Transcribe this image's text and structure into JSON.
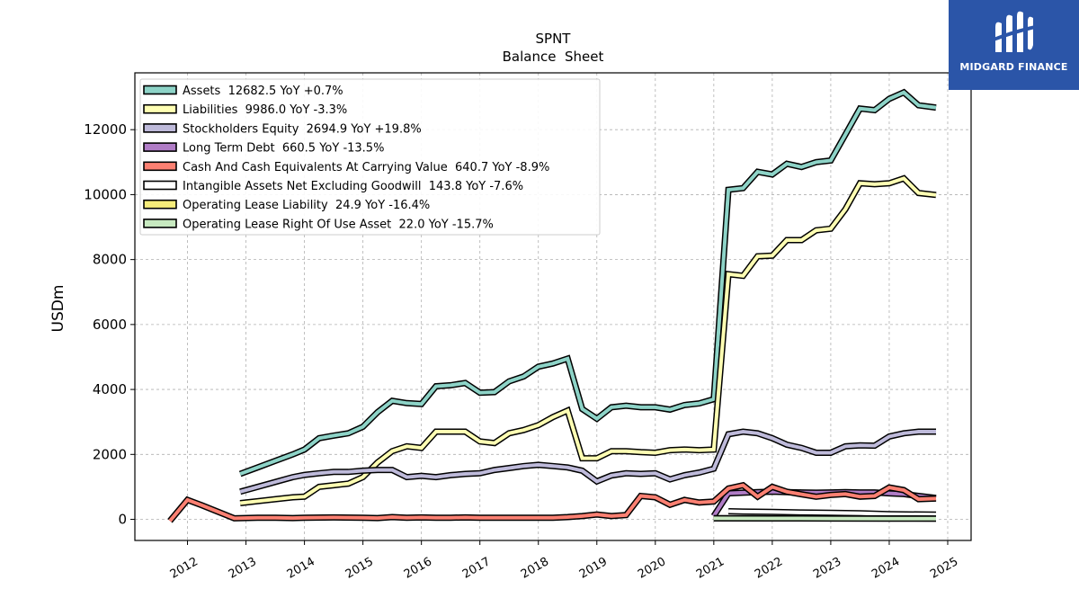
{
  "brand": {
    "name": "MIDGARD FINANCE",
    "bg_color": "#2b55a8"
  },
  "chart_data": {
    "type": "line",
    "title": "SPNT",
    "subtitle": "Balance  Sheet",
    "xlabel": "",
    "ylabel": "USDm",
    "xlim": [
      2011.1,
      2025.4
    ],
    "ylim": [
      -650,
      13750
    ],
    "x_ticks": [
      "2012",
      "2013",
      "2014",
      "2015",
      "2016",
      "2017",
      "2018",
      "2019",
      "2020",
      "2021",
      "2022",
      "2023",
      "2024",
      "2025"
    ],
    "y_ticks": [
      "0",
      "2000",
      "4000",
      "6000",
      "8000",
      "10000",
      "12000"
    ],
    "grid": true,
    "legend_position": "upper-left",
    "series": [
      {
        "name": "Assets",
        "legend_label": "Assets  12682.5 YoY +0.7%",
        "color": "#8dd3c7",
        "points": [
          [
            2012.9,
            1400
          ],
          [
            2013.2,
            1600
          ],
          [
            2013.5,
            1800
          ],
          [
            2013.8,
            2000
          ],
          [
            2014.0,
            2150
          ],
          [
            2014.25,
            2500
          ],
          [
            2014.5,
            2580
          ],
          [
            2014.75,
            2650
          ],
          [
            2015.0,
            2850
          ],
          [
            2015.25,
            3300
          ],
          [
            2015.5,
            3650
          ],
          [
            2015.75,
            3580
          ],
          [
            2016.0,
            3550
          ],
          [
            2016.25,
            4100
          ],
          [
            2016.5,
            4130
          ],
          [
            2016.75,
            4200
          ],
          [
            2017.0,
            3900
          ],
          [
            2017.25,
            3920
          ],
          [
            2017.5,
            4250
          ],
          [
            2017.75,
            4400
          ],
          [
            2018.0,
            4700
          ],
          [
            2018.25,
            4800
          ],
          [
            2018.5,
            4950
          ],
          [
            2018.75,
            3400
          ],
          [
            2019.0,
            3100
          ],
          [
            2019.25,
            3450
          ],
          [
            2019.5,
            3500
          ],
          [
            2019.75,
            3450
          ],
          [
            2020.0,
            3450
          ],
          [
            2020.25,
            3380
          ],
          [
            2020.5,
            3520
          ],
          [
            2020.75,
            3570
          ],
          [
            2021.0,
            3700
          ],
          [
            2021.25,
            10150
          ],
          [
            2021.5,
            10200
          ],
          [
            2021.75,
            10700
          ],
          [
            2022.0,
            10620
          ],
          [
            2022.25,
            10950
          ],
          [
            2022.5,
            10850
          ],
          [
            2022.75,
            11000
          ],
          [
            2023.0,
            11050
          ],
          [
            2023.25,
            11850
          ],
          [
            2023.5,
            12650
          ],
          [
            2023.75,
            12600
          ],
          [
            2024.0,
            12950
          ],
          [
            2024.25,
            13150
          ],
          [
            2024.5,
            12750
          ],
          [
            2024.8,
            12680
          ]
        ]
      },
      {
        "name": "Liabilities",
        "legend_label": "Liabilities  9986.0 YoY -3.3%",
        "color": "#ffffb3",
        "points": [
          [
            2012.9,
            500
          ],
          [
            2013.2,
            560
          ],
          [
            2013.5,
            620
          ],
          [
            2013.8,
            680
          ],
          [
            2014.0,
            700
          ],
          [
            2014.25,
            1000
          ],
          [
            2014.5,
            1050
          ],
          [
            2014.75,
            1100
          ],
          [
            2015.0,
            1300
          ],
          [
            2015.25,
            1750
          ],
          [
            2015.5,
            2100
          ],
          [
            2015.75,
            2250
          ],
          [
            2016.0,
            2200
          ],
          [
            2016.25,
            2700
          ],
          [
            2016.5,
            2700
          ],
          [
            2016.75,
            2700
          ],
          [
            2017.0,
            2400
          ],
          [
            2017.25,
            2350
          ],
          [
            2017.5,
            2650
          ],
          [
            2017.75,
            2750
          ],
          [
            2018.0,
            2900
          ],
          [
            2018.25,
            3150
          ],
          [
            2018.5,
            3350
          ],
          [
            2018.75,
            1880
          ],
          [
            2019.0,
            1880
          ],
          [
            2019.25,
            2100
          ],
          [
            2019.5,
            2100
          ],
          [
            2019.75,
            2070
          ],
          [
            2020.0,
            2050
          ],
          [
            2020.25,
            2130
          ],
          [
            2020.5,
            2150
          ],
          [
            2020.75,
            2130
          ],
          [
            2021.0,
            2150
          ],
          [
            2021.25,
            7550
          ],
          [
            2021.5,
            7500
          ],
          [
            2021.75,
            8100
          ],
          [
            2022.0,
            8120
          ],
          [
            2022.25,
            8600
          ],
          [
            2022.5,
            8600
          ],
          [
            2022.75,
            8900
          ],
          [
            2023.0,
            8950
          ],
          [
            2023.25,
            9550
          ],
          [
            2023.5,
            10350
          ],
          [
            2023.75,
            10320
          ],
          [
            2024.0,
            10350
          ],
          [
            2024.25,
            10500
          ],
          [
            2024.5,
            10050
          ],
          [
            2024.8,
            9990
          ]
        ]
      },
      {
        "name": "Stockholders Equity",
        "legend_label": "Stockholders Equity  2694.9 YoY +19.8%",
        "color": "#bebada",
        "points": [
          [
            2012.9,
            850
          ],
          [
            2013.2,
            1000
          ],
          [
            2013.5,
            1150
          ],
          [
            2013.8,
            1300
          ],
          [
            2014.0,
            1370
          ],
          [
            2014.25,
            1420
          ],
          [
            2014.5,
            1460
          ],
          [
            2014.75,
            1460
          ],
          [
            2015.0,
            1500
          ],
          [
            2015.25,
            1520
          ],
          [
            2015.5,
            1520
          ],
          [
            2015.75,
            1300
          ],
          [
            2016.0,
            1340
          ],
          [
            2016.25,
            1300
          ],
          [
            2016.5,
            1360
          ],
          [
            2016.75,
            1400
          ],
          [
            2017.0,
            1420
          ],
          [
            2017.25,
            1520
          ],
          [
            2017.5,
            1580
          ],
          [
            2017.75,
            1640
          ],
          [
            2018.0,
            1680
          ],
          [
            2018.25,
            1640
          ],
          [
            2018.5,
            1600
          ],
          [
            2018.75,
            1500
          ],
          [
            2019.0,
            1170
          ],
          [
            2019.25,
            1350
          ],
          [
            2019.5,
            1420
          ],
          [
            2019.75,
            1400
          ],
          [
            2020.0,
            1420
          ],
          [
            2020.25,
            1230
          ],
          [
            2020.5,
            1360
          ],
          [
            2020.75,
            1440
          ],
          [
            2021.0,
            1560
          ],
          [
            2021.25,
            2620
          ],
          [
            2021.5,
            2700
          ],
          [
            2021.75,
            2650
          ],
          [
            2022.0,
            2500
          ],
          [
            2022.25,
            2300
          ],
          [
            2022.5,
            2200
          ],
          [
            2022.75,
            2050
          ],
          [
            2023.0,
            2050
          ],
          [
            2023.25,
            2250
          ],
          [
            2023.5,
            2280
          ],
          [
            2023.75,
            2270
          ],
          [
            2024.0,
            2550
          ],
          [
            2024.25,
            2650
          ],
          [
            2024.5,
            2700
          ],
          [
            2024.8,
            2700
          ]
        ]
      },
      {
        "name": "Long Term Debt",
        "legend_label": "Long Term Debt  660.5 YoY -13.5%",
        "color": "#b07cc6",
        "points": [
          [
            2021.0,
            100
          ],
          [
            2021.25,
            800
          ],
          [
            2021.5,
            820
          ],
          [
            2021.75,
            840
          ],
          [
            2022.0,
            850
          ],
          [
            2022.25,
            840
          ],
          [
            2022.5,
            830
          ],
          [
            2022.75,
            820
          ],
          [
            2023.0,
            830
          ],
          [
            2023.25,
            840
          ],
          [
            2023.5,
            830
          ],
          [
            2023.75,
            830
          ],
          [
            2024.0,
            800
          ],
          [
            2024.25,
            780
          ],
          [
            2024.5,
            720
          ],
          [
            2024.8,
            660
          ]
        ]
      },
      {
        "name": "Cash And Cash Equivalents At Carrying Value",
        "legend_label": "Cash And Cash Equivalents At Carrying Value  640.7 YoY -8.9%",
        "color": "#fb8072",
        "points": [
          [
            2011.7,
            -50
          ],
          [
            2012.0,
            600
          ],
          [
            2012.25,
            430
          ],
          [
            2012.5,
            250
          ],
          [
            2012.8,
            30
          ],
          [
            2013.2,
            50
          ],
          [
            2013.5,
            50
          ],
          [
            2013.8,
            40
          ],
          [
            2014.0,
            50
          ],
          [
            2014.5,
            60
          ],
          [
            2015.0,
            50
          ],
          [
            2015.25,
            40
          ],
          [
            2015.5,
            70
          ],
          [
            2015.75,
            50
          ],
          [
            2016.0,
            60
          ],
          [
            2016.25,
            50
          ],
          [
            2016.5,
            50
          ],
          [
            2016.75,
            60
          ],
          [
            2017.0,
            50
          ],
          [
            2017.5,
            50
          ],
          [
            2018.0,
            50
          ],
          [
            2018.25,
            50
          ],
          [
            2018.5,
            70
          ],
          [
            2018.75,
            100
          ],
          [
            2019.0,
            150
          ],
          [
            2019.25,
            100
          ],
          [
            2019.5,
            130
          ],
          [
            2019.75,
            720
          ],
          [
            2020.0,
            680
          ],
          [
            2020.25,
            450
          ],
          [
            2020.5,
            600
          ],
          [
            2020.75,
            520
          ],
          [
            2021.0,
            550
          ],
          [
            2021.25,
            950
          ],
          [
            2021.5,
            1050
          ],
          [
            2021.75,
            700
          ],
          [
            2022.0,
            1000
          ],
          [
            2022.25,
            850
          ],
          [
            2022.5,
            770
          ],
          [
            2022.75,
            700
          ],
          [
            2023.0,
            750
          ],
          [
            2023.25,
            780
          ],
          [
            2023.5,
            700
          ],
          [
            2023.75,
            720
          ],
          [
            2024.0,
            980
          ],
          [
            2024.25,
            900
          ],
          [
            2024.5,
            620
          ],
          [
            2024.8,
            640
          ]
        ]
      },
      {
        "name": "Intangible Assets Net Excluding Goodwill",
        "legend_label": "Intangible Assets Net Excluding Goodwill  143.8 YoY -7.6%",
        "color": "#ffffff",
        "points": [
          [
            2021.25,
            250
          ],
          [
            2021.5,
            240
          ],
          [
            2022.0,
            230
          ],
          [
            2022.5,
            210
          ],
          [
            2023.0,
            200
          ],
          [
            2023.5,
            185
          ],
          [
            2024.0,
            160
          ],
          [
            2024.8,
            144
          ]
        ]
      },
      {
        "name": "Operating Lease Liability",
        "legend_label": "Operating Lease Liability  24.9 YoY -16.4%",
        "color": "#f5ec7a",
        "points": [
          [
            2021.0,
            35
          ],
          [
            2022.0,
            32
          ],
          [
            2023.0,
            30
          ],
          [
            2024.0,
            28
          ],
          [
            2024.8,
            25
          ]
        ]
      },
      {
        "name": "Operating Lease Right Of Use Asset",
        "legend_label": "Operating Lease Right Of Use Asset  22.0 YoY -15.7%",
        "color": "#c7e9c0",
        "points": [
          [
            2021.0,
            30
          ],
          [
            2022.0,
            28
          ],
          [
            2023.0,
            26
          ],
          [
            2024.0,
            24
          ],
          [
            2024.8,
            22
          ]
        ]
      }
    ]
  }
}
